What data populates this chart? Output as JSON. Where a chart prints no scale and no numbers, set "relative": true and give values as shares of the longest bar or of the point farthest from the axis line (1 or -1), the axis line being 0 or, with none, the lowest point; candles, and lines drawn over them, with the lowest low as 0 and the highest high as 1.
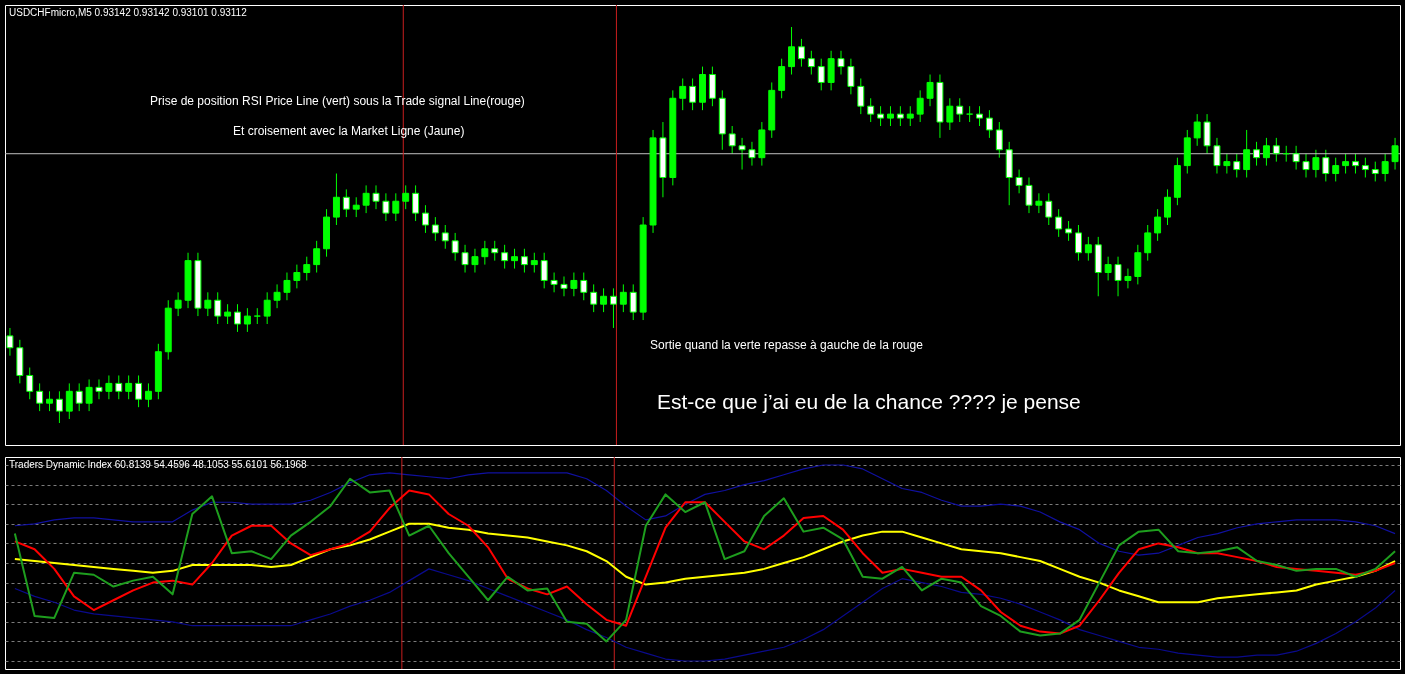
{
  "chart_data": [
    {
      "type": "candlestick",
      "title": "USDCHFmicro,M5  0.93142 0.93142 0.93101 0.93112",
      "relative": true,
      "grid": true,
      "color": "#00ff00",
      "categories": [
        null,
        null,
        null,
        null,
        null,
        null,
        null,
        null,
        null,
        null,
        null,
        null,
        null,
        null,
        null,
        null,
        null,
        null,
        null,
        null,
        null,
        null,
        null,
        null,
        null,
        null,
        null,
        null,
        null,
        null,
        null,
        null,
        null,
        null,
        null,
        null,
        null,
        null,
        null,
        null,
        null,
        null,
        null,
        null,
        null,
        null,
        null,
        null,
        null,
        null,
        null,
        null,
        null,
        null,
        null,
        null,
        null,
        null,
        null,
        null,
        null,
        null,
        null,
        null,
        null,
        null,
        null,
        null,
        null,
        null,
        null,
        null,
        null,
        null,
        null,
        null,
        null,
        null,
        null,
        null,
        null,
        null,
        null,
        null,
        null,
        null,
        null,
        null,
        null,
        null,
        null,
        null,
        null,
        null,
        null,
        null,
        null,
        null,
        null,
        null,
        null,
        null,
        null,
        null,
        null,
        null,
        null,
        null,
        null,
        null,
        null,
        null,
        null,
        null,
        null,
        null,
        null,
        null,
        null,
        null,
        null,
        null,
        null,
        null,
        null,
        null,
        null,
        null,
        null,
        null,
        null,
        null,
        null,
        null,
        null,
        null,
        null,
        null,
        null,
        null,
        null
      ],
      "ohlc": [
        [
          0.22,
          0.24,
          0.17,
          0.19
        ],
        [
          0.19,
          0.21,
          0.1,
          0.12
        ],
        [
          0.12,
          0.14,
          0.06,
          0.08
        ],
        [
          0.08,
          0.1,
          0.03,
          0.05
        ],
        [
          0.05,
          0.08,
          0.03,
          0.06
        ],
        [
          0.06,
          0.08,
          0.0,
          0.03
        ],
        [
          0.03,
          0.1,
          0.01,
          0.08
        ],
        [
          0.08,
          0.1,
          0.03,
          0.05
        ],
        [
          0.05,
          0.11,
          0.03,
          0.09
        ],
        [
          0.09,
          0.11,
          0.06,
          0.08
        ],
        [
          0.08,
          0.12,
          0.06,
          0.1
        ],
        [
          0.1,
          0.12,
          0.06,
          0.08
        ],
        [
          0.08,
          0.12,
          0.06,
          0.1
        ],
        [
          0.1,
          0.12,
          0.04,
          0.06
        ],
        [
          0.06,
          0.1,
          0.04,
          0.08
        ],
        [
          0.08,
          0.2,
          0.06,
          0.18
        ],
        [
          0.18,
          0.31,
          0.16,
          0.29
        ],
        [
          0.29,
          0.33,
          0.27,
          0.31
        ],
        [
          0.31,
          0.43,
          0.29,
          0.41
        ],
        [
          0.41,
          0.43,
          0.27,
          0.29
        ],
        [
          0.29,
          0.33,
          0.27,
          0.31
        ],
        [
          0.31,
          0.33,
          0.25,
          0.27
        ],
        [
          0.27,
          0.3,
          0.25,
          0.28
        ],
        [
          0.28,
          0.3,
          0.23,
          0.25
        ],
        [
          0.25,
          0.29,
          0.23,
          0.27
        ],
        [
          0.27,
          0.29,
          0.25,
          0.27
        ],
        [
          0.27,
          0.33,
          0.25,
          0.31
        ],
        [
          0.31,
          0.35,
          0.29,
          0.33
        ],
        [
          0.33,
          0.38,
          0.31,
          0.36
        ],
        [
          0.36,
          0.4,
          0.34,
          0.38
        ],
        [
          0.38,
          0.42,
          0.36,
          0.4
        ],
        [
          0.4,
          0.46,
          0.38,
          0.44
        ],
        [
          0.44,
          0.54,
          0.42,
          0.52
        ],
        [
          0.52,
          0.63,
          0.5,
          0.57
        ],
        [
          0.57,
          0.59,
          0.52,
          0.54
        ],
        [
          0.54,
          0.57,
          0.52,
          0.55
        ],
        [
          0.55,
          0.6,
          0.53,
          0.58
        ],
        [
          0.58,
          0.6,
          0.54,
          0.56
        ],
        [
          0.56,
          0.58,
          0.51,
          0.53
        ],
        [
          0.53,
          0.58,
          0.51,
          0.56
        ],
        [
          0.56,
          0.6,
          0.54,
          0.58
        ],
        [
          0.58,
          0.6,
          0.51,
          0.53
        ],
        [
          0.53,
          0.55,
          0.48,
          0.5
        ],
        [
          0.5,
          0.52,
          0.46,
          0.48
        ],
        [
          0.48,
          0.5,
          0.44,
          0.46
        ],
        [
          0.46,
          0.48,
          0.41,
          0.43
        ],
        [
          0.43,
          0.45,
          0.38,
          0.4
        ],
        [
          0.4,
          0.44,
          0.38,
          0.42
        ],
        [
          0.42,
          0.46,
          0.4,
          0.44
        ],
        [
          0.44,
          0.46,
          0.41,
          0.43
        ],
        [
          0.43,
          0.45,
          0.39,
          0.41
        ],
        [
          0.41,
          0.44,
          0.39,
          0.42
        ],
        [
          0.42,
          0.44,
          0.38,
          0.4
        ],
        [
          0.4,
          0.43,
          0.38,
          0.41
        ],
        [
          0.41,
          0.43,
          0.34,
          0.36
        ],
        [
          0.36,
          0.38,
          0.33,
          0.35
        ],
        [
          0.35,
          0.37,
          0.32,
          0.34
        ],
        [
          0.34,
          0.38,
          0.32,
          0.36
        ],
        [
          0.36,
          0.38,
          0.31,
          0.33
        ],
        [
          0.33,
          0.35,
          0.28,
          0.3
        ],
        [
          0.3,
          0.34,
          0.28,
          0.32
        ],
        [
          0.32,
          0.34,
          0.24,
          0.3
        ],
        [
          0.3,
          0.35,
          0.28,
          0.33
        ],
        [
          0.33,
          0.35,
          0.26,
          0.28
        ],
        [
          0.28,
          0.52,
          0.26,
          0.5
        ],
        [
          0.5,
          0.74,
          0.48,
          0.72
        ],
        [
          0.72,
          0.76,
          0.57,
          0.62
        ],
        [
          0.62,
          0.84,
          0.6,
          0.82
        ],
        [
          0.82,
          0.87,
          0.79,
          0.85
        ],
        [
          0.85,
          0.87,
          0.79,
          0.81
        ],
        [
          0.81,
          0.9,
          0.79,
          0.88
        ],
        [
          0.88,
          0.9,
          0.8,
          0.82
        ],
        [
          0.82,
          0.84,
          0.69,
          0.73
        ],
        [
          0.73,
          0.75,
          0.68,
          0.7
        ],
        [
          0.7,
          0.72,
          0.64,
          0.69
        ],
        [
          0.69,
          0.71,
          0.65,
          0.67
        ],
        [
          0.67,
          0.76,
          0.65,
          0.74
        ],
        [
          0.74,
          0.86,
          0.72,
          0.84
        ],
        [
          0.84,
          0.92,
          0.82,
          0.9
        ],
        [
          0.9,
          1.0,
          0.88,
          0.95
        ],
        [
          0.95,
          0.97,
          0.9,
          0.92
        ],
        [
          0.92,
          0.94,
          0.88,
          0.9
        ],
        [
          0.9,
          0.92,
          0.84,
          0.86
        ],
        [
          0.86,
          0.94,
          0.84,
          0.92
        ],
        [
          0.92,
          0.94,
          0.88,
          0.9
        ],
        [
          0.9,
          0.92,
          0.83,
          0.85
        ],
        [
          0.85,
          0.87,
          0.78,
          0.8
        ],
        [
          0.8,
          0.82,
          0.76,
          0.78
        ],
        [
          0.78,
          0.8,
          0.75,
          0.77
        ],
        [
          0.77,
          0.8,
          0.75,
          0.78
        ],
        [
          0.78,
          0.8,
          0.75,
          0.77
        ],
        [
          0.77,
          0.8,
          0.75,
          0.78
        ],
        [
          0.78,
          0.84,
          0.76,
          0.82
        ],
        [
          0.82,
          0.88,
          0.8,
          0.86
        ],
        [
          0.86,
          0.88,
          0.72,
          0.76
        ],
        [
          0.76,
          0.82,
          0.74,
          0.8
        ],
        [
          0.8,
          0.82,
          0.76,
          0.78
        ],
        [
          0.78,
          0.8,
          0.76,
          0.78
        ],
        [
          0.78,
          0.8,
          0.75,
          0.77
        ],
        [
          0.77,
          0.79,
          0.72,
          0.74
        ],
        [
          0.74,
          0.76,
          0.67,
          0.69
        ],
        [
          0.69,
          0.71,
          0.55,
          0.62
        ],
        [
          0.62,
          0.64,
          0.58,
          0.6
        ],
        [
          0.6,
          0.62,
          0.53,
          0.55
        ],
        [
          0.55,
          0.58,
          0.53,
          0.56
        ],
        [
          0.56,
          0.58,
          0.5,
          0.52
        ],
        [
          0.52,
          0.54,
          0.47,
          0.49
        ],
        [
          0.49,
          0.51,
          0.46,
          0.48
        ],
        [
          0.48,
          0.5,
          0.41,
          0.43
        ],
        [
          0.43,
          0.47,
          0.41,
          0.45
        ],
        [
          0.45,
          0.47,
          0.32,
          0.38
        ],
        [
          0.38,
          0.42,
          0.36,
          0.4
        ],
        [
          0.4,
          0.42,
          0.32,
          0.36
        ],
        [
          0.36,
          0.39,
          0.34,
          0.37
        ],
        [
          0.37,
          0.45,
          0.35,
          0.43
        ],
        [
          0.43,
          0.5,
          0.41,
          0.48
        ],
        [
          0.48,
          0.54,
          0.46,
          0.52
        ],
        [
          0.52,
          0.59,
          0.5,
          0.57
        ],
        [
          0.57,
          0.67,
          0.55,
          0.65
        ],
        [
          0.65,
          0.74,
          0.63,
          0.72
        ],
        [
          0.72,
          0.78,
          0.7,
          0.76
        ],
        [
          0.76,
          0.78,
          0.68,
          0.7
        ],
        [
          0.7,
          0.72,
          0.63,
          0.65
        ],
        [
          0.65,
          0.68,
          0.63,
          0.66
        ],
        [
          0.66,
          0.68,
          0.62,
          0.64
        ],
        [
          0.64,
          0.74,
          0.62,
          0.69
        ],
        [
          0.69,
          0.71,
          0.65,
          0.67
        ],
        [
          0.67,
          0.72,
          0.65,
          0.7
        ],
        [
          0.7,
          0.72,
          0.66,
          0.68
        ],
        [
          0.68,
          0.7,
          0.66,
          0.68
        ],
        [
          0.68,
          0.7,
          0.64,
          0.66
        ],
        [
          0.66,
          0.68,
          0.62,
          0.64
        ],
        [
          0.64,
          0.69,
          0.62,
          0.67
        ],
        [
          0.67,
          0.69,
          0.61,
          0.63
        ],
        [
          0.63,
          0.67,
          0.61,
          0.65
        ],
        [
          0.65,
          0.68,
          0.63,
          0.66
        ],
        [
          0.66,
          0.68,
          0.63,
          0.65
        ],
        [
          0.65,
          0.67,
          0.62,
          0.64
        ],
        [
          0.64,
          0.66,
          0.61,
          0.63
        ],
        [
          0.63,
          0.68,
          0.61,
          0.66
        ],
        [
          0.66,
          0.72,
          0.64,
          0.7
        ]
      ],
      "ref_lines": [
        {
          "axis": "y",
          "value": 0.68,
          "color": "#c0c0c0"
        }
      ],
      "annotations": [
        "Prise de position RSI Price Line (vert) sous la Trade signal Line(rouge)",
        "Et croisement avec la Market Ligne (Jaune)",
        "Sortie quand la verte repasse à gauche de la rouge",
        "Est-ce que j’ai eu de la chance ????   je pense"
      ]
    },
    {
      "type": "line",
      "title": "Traders Dynamic Index 60.8139 54.4596 48.1053 55.6101 56.1968",
      "relative": true,
      "grid": true,
      "categories": [
        null,
        null,
        null,
        null,
        null,
        null,
        null,
        null,
        null,
        null,
        null,
        null,
        null,
        null,
        null,
        null,
        null,
        null,
        null,
        null,
        null,
        null,
        null,
        null,
        null,
        null,
        null,
        null,
        null,
        null,
        null,
        null,
        null,
        null,
        null,
        null,
        null,
        null,
        null,
        null,
        null,
        null,
        null,
        null,
        null,
        null,
        null,
        null,
        null,
        null,
        null,
        null,
        null,
        null,
        null,
        null,
        null,
        null,
        null,
        null,
        null,
        null,
        null,
        null,
        null,
        null,
        null,
        null,
        null,
        null,
        null
      ],
      "series": [
        {
          "color": "#1010a0",
          "values": [
            0.69,
            0.7,
            0.72,
            0.73,
            0.73,
            0.72,
            0.71,
            0.71,
            0.71,
            0.77,
            0.81,
            0.81,
            0.8,
            0.8,
            0.8,
            0.82,
            0.86,
            0.91,
            0.95,
            0.96,
            0.95,
            0.94,
            0.93,
            0.95,
            0.96,
            0.96,
            0.96,
            0.96,
            0.96,
            0.93,
            0.87,
            0.79,
            0.72,
            0.74,
            0.8,
            0.85,
            0.87,
            0.9,
            0.92,
            0.95,
            0.98,
            1.0,
            1.0,
            0.98,
            0.93,
            0.88,
            0.86,
            0.82,
            0.79,
            0.79,
            0.8,
            0.79,
            0.76,
            0.71,
            0.67,
            0.6,
            0.56,
            0.54,
            0.55,
            0.59,
            0.63,
            0.65,
            0.68,
            0.7,
            0.71,
            0.72,
            0.72,
            0.72,
            0.71,
            0.69,
            0.65
          ]
        },
        {
          "color": "#0a0a8c",
          "values": [
            0.37,
            0.33,
            0.3,
            0.26,
            0.24,
            0.23,
            0.22,
            0.21,
            0.2,
            0.18,
            0.18,
            0.18,
            0.18,
            0.18,
            0.18,
            0.21,
            0.24,
            0.28,
            0.31,
            0.35,
            0.41,
            0.47,
            0.44,
            0.41,
            0.37,
            0.33,
            0.29,
            0.25,
            0.21,
            0.16,
            0.12,
            0.07,
            0.04,
            0.01,
            0,
            0,
            0.01,
            0.03,
            0.05,
            0.07,
            0.11,
            0.16,
            0.23,
            0.3,
            0.37,
            0.42,
            0.4,
            0.38,
            0.35,
            0.34,
            0.32,
            0.29,
            0.25,
            0.21,
            0.16,
            0.13,
            0.1,
            0.07,
            0.06,
            0.04,
            0.03,
            0.02,
            0.02,
            0.03,
            0.03,
            0.05,
            0.09,
            0.14,
            0.2,
            0.27,
            0.36
          ]
        },
        {
          "color": "#ffff00",
          "values": [
            0.52,
            0.51,
            0.5,
            0.49,
            0.48,
            0.47,
            0.46,
            0.45,
            0.46,
            0.49,
            0.49,
            0.49,
            0.49,
            0.48,
            0.49,
            0.53,
            0.57,
            0.59,
            0.62,
            0.66,
            0.7,
            0.7,
            0.68,
            0.67,
            0.65,
            0.64,
            0.63,
            0.61,
            0.59,
            0.56,
            0.51,
            0.43,
            0.39,
            0.4,
            0.42,
            0.43,
            0.44,
            0.45,
            0.47,
            0.5,
            0.53,
            0.57,
            0.61,
            0.64,
            0.66,
            0.66,
            0.63,
            0.6,
            0.57,
            0.56,
            0.55,
            0.53,
            0.51,
            0.47,
            0.43,
            0.4,
            0.36,
            0.33,
            0.3,
            0.3,
            0.3,
            0.32,
            0.33,
            0.34,
            0.35,
            0.36,
            0.39,
            0.41,
            0.43,
            0.46,
            0.51
          ]
        },
        {
          "color": "#ff0000",
          "values": [
            0.61,
            0.57,
            0.47,
            0.33,
            0.26,
            0.31,
            0.36,
            0.4,
            0.41,
            0.39,
            0.5,
            0.64,
            0.69,
            0.69,
            0.6,
            0.54,
            0.57,
            0.6,
            0.66,
            0.78,
            0.87,
            0.85,
            0.75,
            0.69,
            0.58,
            0.42,
            0.37,
            0.34,
            0.38,
            0.29,
            0.21,
            0.18,
            0.43,
            0.68,
            0.81,
            0.81,
            0.71,
            0.61,
            0.57,
            0.64,
            0.73,
            0.74,
            0.67,
            0.55,
            0.45,
            0.47,
            0.45,
            0.43,
            0.43,
            0.36,
            0.25,
            0.18,
            0.15,
            0.14,
            0.18,
            0.31,
            0.45,
            0.57,
            0.6,
            0.58,
            0.55,
            0.55,
            0.53,
            0.51,
            0.48,
            0.47,
            0.46,
            0.45,
            0.44,
            0.46,
            0.5
          ]
        },
        {
          "color": "#1e9e1e",
          "values": [
            0.65,
            0.23,
            0.22,
            0.45,
            0.44,
            0.38,
            0.41,
            0.43,
            0.34,
            0.75,
            0.84,
            0.55,
            0.56,
            0.52,
            0.64,
            0.71,
            0.79,
            0.93,
            0.86,
            0.87,
            0.64,
            0.69,
            0.55,
            0.43,
            0.31,
            0.43,
            0.36,
            0.37,
            0.2,
            0.19,
            0.1,
            0.21,
            0.69,
            0.85,
            0.76,
            0.81,
            0.52,
            0.56,
            0.74,
            0.83,
            0.66,
            0.68,
            0.62,
            0.43,
            0.42,
            0.48,
            0.36,
            0.42,
            0.4,
            0.28,
            0.23,
            0.15,
            0.13,
            0.14,
            0.21,
            0.4,
            0.59,
            0.66,
            0.67,
            0.56,
            0.55,
            0.56,
            0.58,
            0.51,
            0.49,
            0.46,
            0.47,
            0.47,
            0.43,
            0.47,
            0.56
          ]
        }
      ]
    }
  ]
}
